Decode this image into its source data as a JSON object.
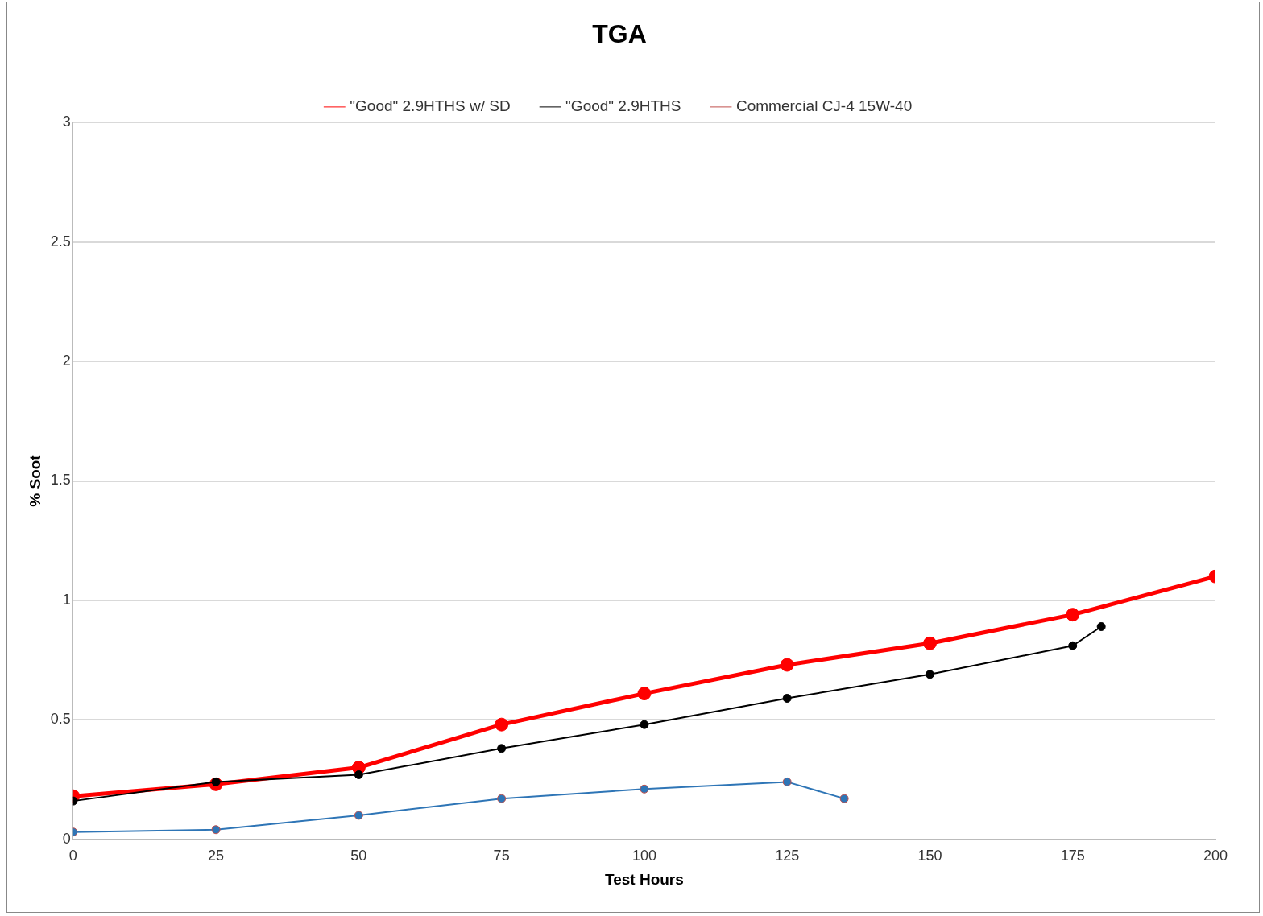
{
  "chart_data": {
    "type": "line",
    "title": "TGA",
    "xlabel": "Test Hours",
    "ylabel": "% Soot",
    "series": [
      {
        "name": "\"Good\" 2.9HTHS w/ SD",
        "color": "#ff0000",
        "x": [
          0,
          25,
          50,
          75,
          100,
          125,
          150,
          175,
          200
        ],
        "values": [
          0.18,
          0.23,
          0.3,
          0.48,
          0.61,
          0.73,
          0.82,
          0.94,
          1.1
        ]
      },
      {
        "name": "\"Good\" 2.9HTHS",
        "color": "#000000",
        "x": [
          0,
          25,
          50,
          75,
          100,
          125,
          150,
          175,
          180
        ],
        "values": [
          0.16,
          0.24,
          0.27,
          0.38,
          0.48,
          0.59,
          0.69,
          0.81,
          0.89
        ]
      },
      {
        "name": "Commercial CJ-4 15W-40",
        "color": "#2e75b6",
        "x": [
          0,
          25,
          50,
          75,
          100,
          125,
          135
        ],
        "values": [
          0.03,
          0.04,
          0.1,
          0.17,
          0.21,
          0.24,
          0.17
        ]
      }
    ],
    "xlim": [
      0,
      200
    ],
    "xticks": [
      0,
      25,
      50,
      75,
      100,
      125,
      150,
      175,
      200
    ],
    "ylim": [
      0,
      3
    ],
    "yticks": [
      0,
      0.5,
      1,
      1.5,
      2,
      2.5,
      3
    ],
    "grid": "y",
    "legend": "top",
    "marker": "circle",
    "line_style": "solid"
  }
}
